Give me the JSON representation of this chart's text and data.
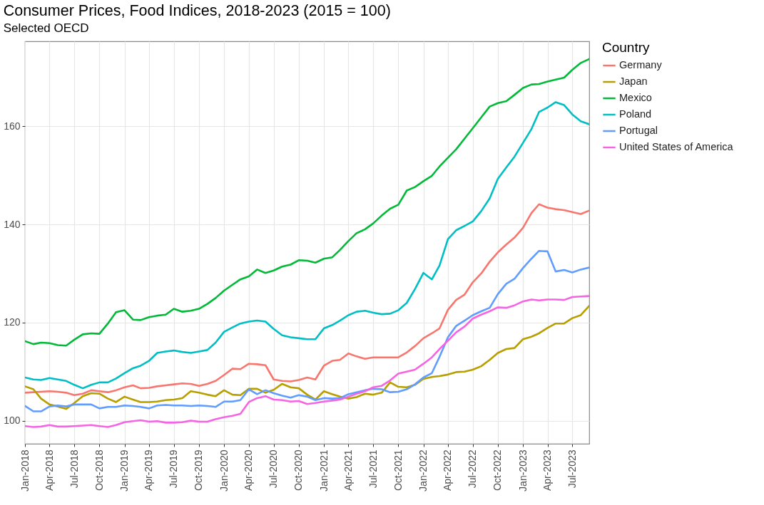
{
  "chart_data": {
    "type": "line",
    "title": "Consumer Prices, Food Indices, 2018-2023 (2015 = 100)",
    "subtitle": "Selected OECD",
    "legend_title": "Country",
    "legend": "right",
    "grid": true,
    "x": [
      "2018-01",
      "2018-02",
      "2018-03",
      "2018-04",
      "2018-05",
      "2018-06",
      "2018-07",
      "2018-08",
      "2018-09",
      "2018-10",
      "2018-11",
      "2018-12",
      "2019-01",
      "2019-02",
      "2019-03",
      "2019-04",
      "2019-05",
      "2019-06",
      "2019-07",
      "2019-08",
      "2019-09",
      "2019-10",
      "2019-11",
      "2019-12",
      "2020-01",
      "2020-02",
      "2020-03",
      "2020-04",
      "2020-05",
      "2020-06",
      "2020-07",
      "2020-08",
      "2020-09",
      "2020-10",
      "2020-11",
      "2020-12",
      "2021-01",
      "2021-02",
      "2021-03",
      "2021-04",
      "2021-05",
      "2021-06",
      "2021-07",
      "2021-08",
      "2021-09",
      "2021-10",
      "2021-11",
      "2021-12",
      "2022-01",
      "2022-02",
      "2022-03",
      "2022-04",
      "2022-05",
      "2022-06",
      "2022-07",
      "2022-08",
      "2022-09",
      "2022-10",
      "2022-11",
      "2022-12",
      "2023-01",
      "2023-02",
      "2023-03",
      "2023-04",
      "2023-05",
      "2023-06",
      "2023-07",
      "2023-08",
      "2023-09"
    ],
    "xlim": [
      "2018-01",
      "2023-09"
    ],
    "xticks": [
      {
        "value": "2018-01",
        "label": "Jan-2018"
      },
      {
        "value": "2018-04",
        "label": "Apr-2018"
      },
      {
        "value": "2018-07",
        "label": "Jul-2018"
      },
      {
        "value": "2018-10",
        "label": "Oct-2018"
      },
      {
        "value": "2019-01",
        "label": "Jan-2019"
      },
      {
        "value": "2019-04",
        "label": "Apr-2019"
      },
      {
        "value": "2019-07",
        "label": "Jul-2019"
      },
      {
        "value": "2019-10",
        "label": "Oct-2019"
      },
      {
        "value": "2020-01",
        "label": "Jan-2020"
      },
      {
        "value": "2020-04",
        "label": "Apr-2020"
      },
      {
        "value": "2020-07",
        "label": "Jul-2020"
      },
      {
        "value": "2020-10",
        "label": "Oct-2020"
      },
      {
        "value": "2021-01",
        "label": "Jan-2021"
      },
      {
        "value": "2021-04",
        "label": "Apr-2021"
      },
      {
        "value": "2021-07",
        "label": "Jul-2021"
      },
      {
        "value": "2021-10",
        "label": "Oct-2021"
      },
      {
        "value": "2022-01",
        "label": "Jan-2022"
      },
      {
        "value": "2022-04",
        "label": "Apr-2022"
      },
      {
        "value": "2022-07",
        "label": "Jul-2022"
      },
      {
        "value": "2022-10",
        "label": "Oct-2022"
      },
      {
        "value": "2023-01",
        "label": "Jan-2023"
      },
      {
        "value": "2023-04",
        "label": "Apr-2023"
      },
      {
        "value": "2023-07",
        "label": "Jul-2023"
      }
    ],
    "ylim": [
      95.3,
      177.3
    ],
    "yticks": [
      100,
      120,
      140,
      160
    ],
    "series": [
      {
        "name": "Germany",
        "color": "#f8766d",
        "values": [
          105.7,
          105.8,
          105.9,
          106.0,
          105.9,
          105.7,
          105.2,
          105.5,
          106.2,
          106.0,
          105.8,
          106.2,
          106.8,
          107.2,
          106.6,
          106.7,
          107.0,
          107.2,
          107.4,
          107.6,
          107.5,
          107.1,
          107.5,
          108.1,
          109.3,
          110.6,
          110.5,
          111.6,
          111.5,
          111.3,
          108.4,
          108.1,
          108.0,
          108.3,
          108.8,
          108.4,
          111.2,
          112.2,
          112.4,
          113.7,
          113.1,
          112.6,
          112.9,
          112.9,
          112.9,
          112.9,
          113.9,
          115.2,
          116.8,
          117.8,
          118.8,
          122.6,
          124.6,
          125.7,
          128.2,
          130.0,
          132.4,
          134.3,
          135.9,
          137.3,
          139.3,
          142.3,
          144.1,
          143.4,
          143.1,
          142.9,
          142.5,
          142.1,
          142.8
        ]
      },
      {
        "name": "Japan",
        "color": "#b79f00",
        "values": [
          107.0,
          106.4,
          104.5,
          103.3,
          102.9,
          102.4,
          103.6,
          105.0,
          105.6,
          105.5,
          104.5,
          103.8,
          104.9,
          104.3,
          103.8,
          103.8,
          103.9,
          104.2,
          104.3,
          104.6,
          106.0,
          105.7,
          105.3,
          105.0,
          106.2,
          105.3,
          105.2,
          106.5,
          106.5,
          105.7,
          106.3,
          107.5,
          106.8,
          106.6,
          105.3,
          104.3,
          106.0,
          105.4,
          104.9,
          104.5,
          104.8,
          105.5,
          105.3,
          105.7,
          107.8,
          106.9,
          106.8,
          107.3,
          108.5,
          108.9,
          109.1,
          109.4,
          109.9,
          110.0,
          110.4,
          111.1,
          112.4,
          113.8,
          114.6,
          114.8,
          116.6,
          117.1,
          117.8,
          118.9,
          119.8,
          119.8,
          120.9,
          121.5,
          123.4
        ]
      },
      {
        "name": "Mexico",
        "color": "#00ba38",
        "values": [
          116.2,
          115.6,
          115.9,
          115.8,
          115.4,
          115.3,
          116.5,
          117.6,
          117.8,
          117.7,
          119.8,
          122.1,
          122.5,
          120.6,
          120.5,
          121.1,
          121.4,
          121.6,
          122.8,
          122.2,
          122.4,
          122.8,
          123.8,
          125.0,
          126.5,
          127.7,
          128.8,
          129.4,
          130.8,
          130.1,
          130.6,
          131.4,
          131.8,
          132.7,
          132.6,
          132.2,
          133.0,
          133.3,
          134.8,
          136.6,
          138.2,
          139.0,
          140.2,
          141.8,
          143.2,
          144.0,
          146.9,
          147.6,
          148.8,
          149.9,
          151.8,
          153.6,
          155.3,
          157.5,
          159.6,
          161.8,
          164.0,
          164.7,
          165.1,
          166.4,
          167.8,
          168.5,
          168.6,
          169.1,
          169.5,
          169.9,
          171.5,
          172.9,
          173.7
        ]
      },
      {
        "name": "Poland",
        "color": "#00bfc4",
        "values": [
          108.8,
          108.4,
          108.3,
          108.7,
          108.4,
          108.1,
          107.3,
          106.6,
          107.3,
          107.8,
          107.8,
          108.6,
          109.7,
          110.7,
          111.2,
          112.2,
          113.8,
          114.1,
          114.3,
          114.0,
          113.8,
          114.1,
          114.4,
          115.9,
          118.1,
          119.0,
          119.8,
          120.2,
          120.4,
          120.2,
          118.7,
          117.4,
          117.0,
          116.8,
          116.6,
          116.6,
          118.8,
          119.5,
          120.4,
          121.5,
          122.2,
          122.4,
          122.0,
          121.7,
          121.8,
          122.5,
          124.0,
          126.8,
          130.1,
          128.8,
          131.6,
          137.0,
          138.8,
          139.7,
          140.6,
          142.7,
          145.3,
          149.3,
          151.6,
          153.8,
          156.6,
          159.4,
          162.9,
          163.8,
          164.9,
          164.3,
          162.4,
          161.0,
          160.4
        ]
      },
      {
        "name": "Portugal",
        "color": "#619cff",
        "values": [
          103.0,
          101.9,
          101.9,
          102.9,
          103.1,
          102.9,
          103.3,
          103.3,
          103.3,
          102.5,
          102.8,
          102.8,
          103.1,
          103.0,
          102.8,
          102.5,
          103.1,
          103.2,
          103.1,
          103.1,
          103.0,
          103.1,
          103.0,
          102.8,
          103.9,
          103.9,
          104.2,
          106.4,
          105.4,
          106.2,
          105.6,
          105.1,
          104.7,
          105.2,
          104.9,
          104.2,
          104.6,
          104.5,
          104.6,
          105.4,
          105.8,
          106.2,
          106.5,
          106.4,
          105.8,
          105.9,
          106.4,
          107.4,
          108.8,
          109.7,
          113.0,
          117.0,
          119.3,
          120.4,
          121.5,
          122.3,
          123.0,
          125.8,
          127.9,
          128.9,
          131.1,
          133.0,
          134.6,
          134.5,
          130.4,
          130.7,
          130.2,
          130.8,
          131.2
        ]
      },
      {
        "name": "United States of America",
        "color": "#f564e3",
        "values": [
          98.9,
          98.7,
          98.8,
          99.1,
          98.8,
          98.8,
          98.9,
          99.0,
          99.1,
          98.9,
          98.7,
          99.1,
          99.7,
          99.9,
          100.1,
          99.8,
          99.9,
          99.6,
          99.6,
          99.7,
          100.0,
          99.8,
          99.8,
          100.3,
          100.7,
          101.0,
          101.4,
          103.8,
          104.6,
          105.0,
          104.3,
          104.2,
          103.9,
          104.0,
          103.4,
          103.6,
          103.9,
          104.1,
          104.3,
          104.9,
          105.5,
          106.0,
          106.8,
          107.1,
          108.2,
          109.6,
          110.0,
          110.4,
          111.6,
          112.9,
          114.6,
          116.3,
          118.0,
          119.2,
          120.8,
          121.6,
          122.3,
          123.1,
          123.0,
          123.5,
          124.3,
          124.7,
          124.5,
          124.7,
          124.7,
          124.6,
          125.2,
          125.3,
          125.4
        ]
      }
    ]
  }
}
